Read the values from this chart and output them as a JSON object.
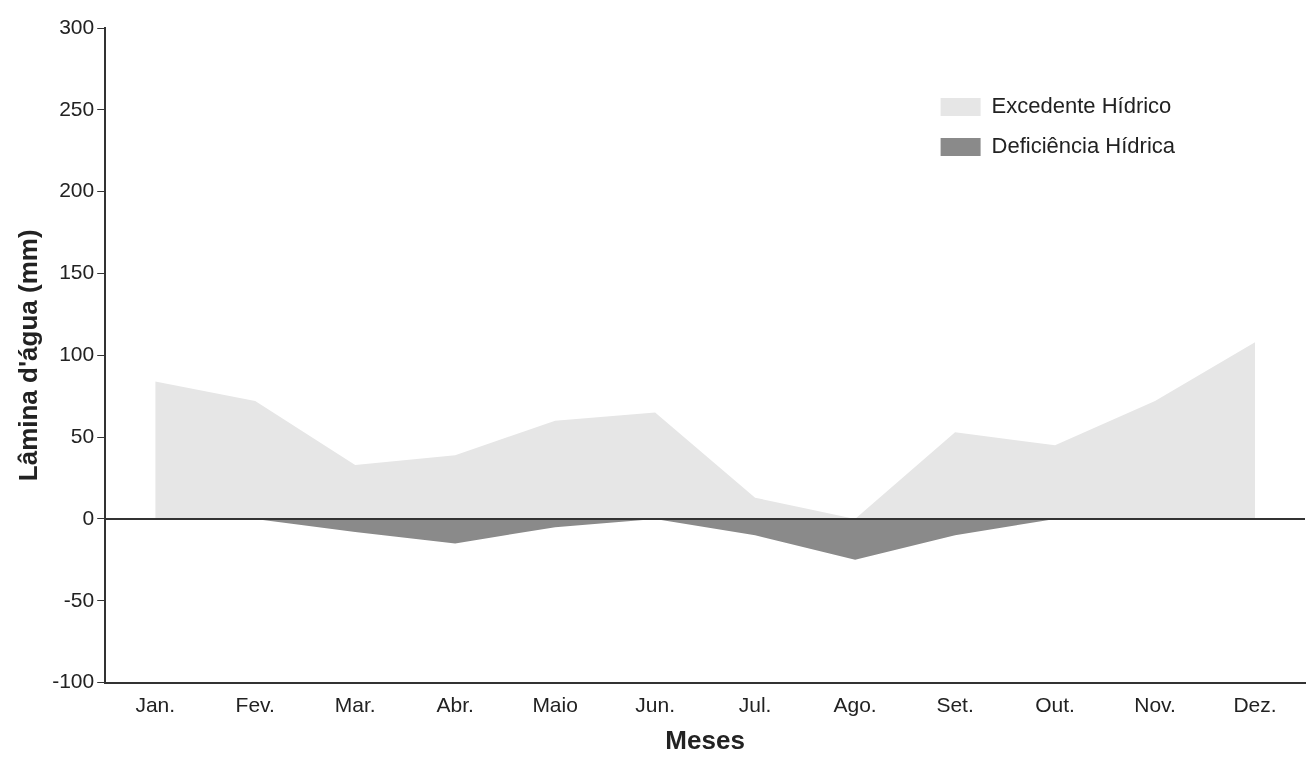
{
  "chart_data": {
    "type": "area",
    "xlabel": "Meses",
    "ylabel": "Lâmina d'água (mm)",
    "categories": [
      "Jan.",
      "Fev.",
      "Mar.",
      "Abr.",
      "Maio",
      "Jun.",
      "Jul.",
      "Ago.",
      "Set.",
      "Out.",
      "Nov.",
      "Dez."
    ],
    "series": [
      {
        "name": "Excedente Hídrico",
        "color": "#e6e6e6",
        "values": [
          84,
          72,
          33,
          39,
          60,
          65,
          13,
          0,
          53,
          45,
          72,
          108
        ]
      },
      {
        "name": "Deficiência Hídrica",
        "color": "#8a8a8a",
        "values": [
          0,
          0,
          -8,
          -15,
          -5,
          0,
          -10,
          -25,
          -10,
          0,
          0,
          0
        ]
      }
    ],
    "ylim": [
      -100,
      300
    ],
    "yticks": [
      -100,
      -50,
      0,
      50,
      100,
      150,
      200,
      250,
      300
    ],
    "ref_lines": [
      {
        "axis": "y",
        "value": 0,
        "color": "#333333"
      }
    ],
    "grid": false,
    "legend": "top right"
  }
}
